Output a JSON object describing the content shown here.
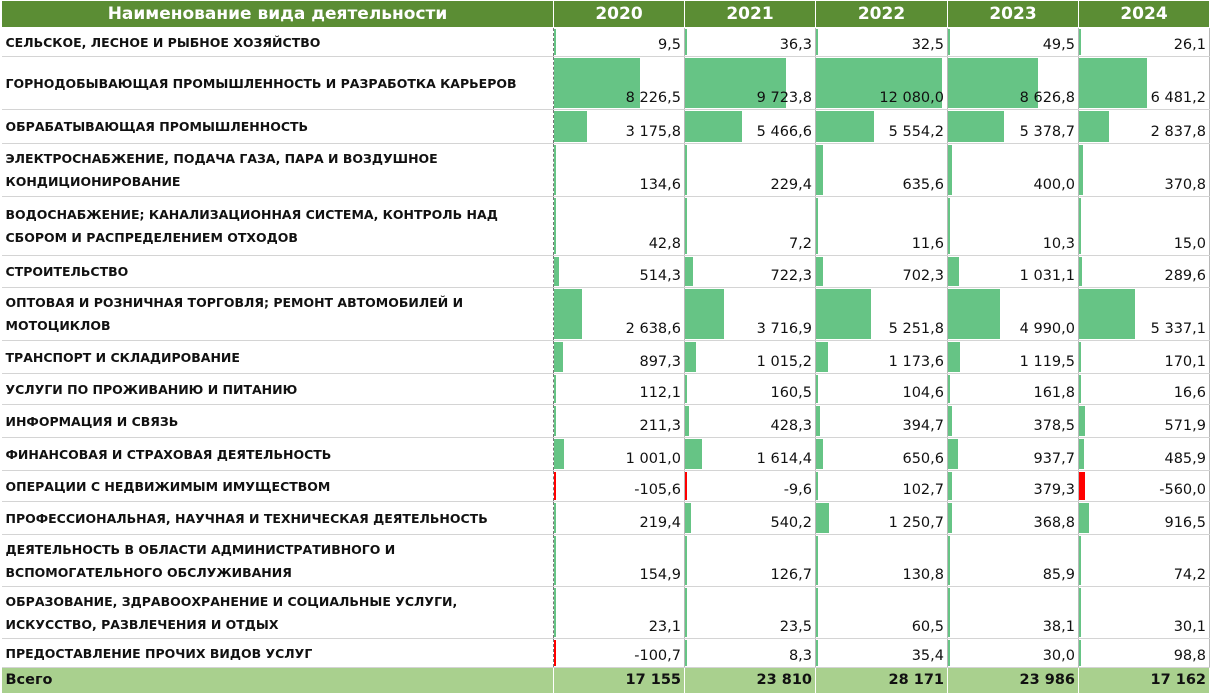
{
  "table": {
    "header": {
      "category": "Наименование вида деятельности",
      "years": [
        "2020",
        "2021",
        "2022",
        "2023",
        "2024"
      ]
    },
    "rows": [
      {
        "label": "Сельское, лесное и рыбное хозяйство",
        "values": [
          "9,5",
          "36,3",
          "32,5",
          "49,5",
          "26,1"
        ]
      },
      {
        "label": "Горнодобывающая промышленность и разработка карьеров",
        "values": [
          "8 226,5",
          "9 723,8",
          "12 080,0",
          "8 626,8",
          "6 481,2"
        ]
      },
      {
        "label": "Обрабатывающая промышленность",
        "values": [
          "3 175,8",
          "5 466,6",
          "5 554,2",
          "5 378,7",
          "2 837,8"
        ]
      },
      {
        "label": "Электроснабжение, подача газа, пара и воздушное кондиционирование",
        "values": [
          "134,6",
          "229,4",
          "635,6",
          "400,0",
          "370,8"
        ]
      },
      {
        "label": "Водоснабжение; канализационная система, контроль над сбором и распределением отходов",
        "values": [
          "42,8",
          "7,2",
          "11,6",
          "10,3",
          "15,0"
        ]
      },
      {
        "label": "Строительство",
        "values": [
          "514,3",
          "722,3",
          "702,3",
          "1 031,1",
          "289,6"
        ]
      },
      {
        "label": "Оптовая и розничная торговля; ремонт автомобилей и мотоциклов",
        "values": [
          "2 638,6",
          "3 716,9",
          "5 251,8",
          "4 990,0",
          "5 337,1"
        ]
      },
      {
        "label": "Транспорт и складирование",
        "values": [
          "897,3",
          "1 015,2",
          "1 173,6",
          "1 119,5",
          "170,1"
        ]
      },
      {
        "label": "Услуги по проживанию и питанию",
        "values": [
          "112,1",
          "160,5",
          "104,6",
          "161,8",
          "16,6"
        ]
      },
      {
        "label": "Информация и связь",
        "values": [
          "211,3",
          "428,3",
          "394,7",
          "378,5",
          "571,9"
        ]
      },
      {
        "label": "Финансовая и страховая деятельность",
        "values": [
          "1 001,0",
          "1 614,4",
          "650,6",
          "937,7",
          "485,9"
        ]
      },
      {
        "label": "Операции с недвижимым имуществом",
        "values": [
          "-105,6",
          "-9,6",
          "102,7",
          "379,3",
          "-560,0"
        ]
      },
      {
        "label": "Профессиональная, научная и техническая деятельность",
        "values": [
          "219,4",
          "540,2",
          "1 250,7",
          "368,8",
          "916,5"
        ]
      },
      {
        "label": "Деятельность в области административного и вспомогательного обслуживания",
        "values": [
          "154,9",
          "126,7",
          "130,8",
          "85,9",
          "74,2"
        ]
      },
      {
        "label": "Образование, здравоохранение и социальные услуги, искусство, развлечения и отдых",
        "values": [
          "23,1",
          "23,5",
          "60,5",
          "38,1",
          "30,1"
        ]
      },
      {
        "label": "Предоставление прочих видов услуг",
        "values": [
          "-100,7",
          "8,3",
          "35,4",
          "30,0",
          "98,8"
        ]
      }
    ],
    "total": {
      "label": "Всего",
      "values": [
        "17 155",
        "23 810",
        "28 171",
        "23 986",
        "17 162"
      ]
    }
  },
  "colors": {
    "header_bg": "#5b8d34",
    "positive_bar": "#66c485",
    "negative_bar": "#ff0000",
    "total_bg": "#a9d08e"
  }
}
